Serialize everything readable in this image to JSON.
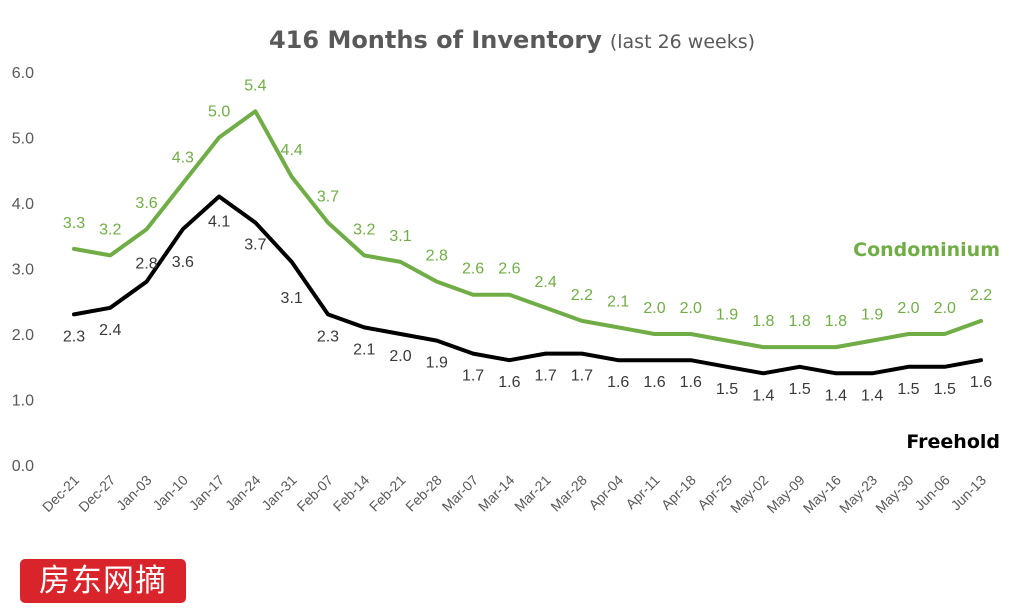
{
  "chart_data": {
    "type": "line",
    "title": "416 Months of Inventory",
    "subtitle": "(last 26 weeks)",
    "categories": [
      "Dec-21",
      "Dec-27",
      "Jan-03",
      "Jan-10",
      "Jan-17",
      "Jan-24",
      "Jan-31",
      "Feb-07",
      "Feb-14",
      "Feb-21",
      "Feb-28",
      "Mar-07",
      "Mar-14",
      "Mar-21",
      "Mar-28",
      "Apr-04",
      "Apr-11",
      "Apr-18",
      "Apr-25",
      "May-02",
      "May-09",
      "May-16",
      "May-23",
      "May-30",
      "Jun-06",
      "Jun-13"
    ],
    "yticks": [
      "0.0",
      "1.0",
      "2.0",
      "3.0",
      "4.0",
      "5.0",
      "6.0"
    ],
    "ylim": [
      0,
      6
    ],
    "grid": false,
    "series": [
      {
        "name": "Condominium",
        "color": "#70ad47",
        "values": [
          3.3,
          3.2,
          3.6,
          4.3,
          5.0,
          5.4,
          4.4,
          3.7,
          3.2,
          3.1,
          2.8,
          2.6,
          2.6,
          2.4,
          2.2,
          2.1,
          2.0,
          2.0,
          1.9,
          1.8,
          1.8,
          1.8,
          1.9,
          2.0,
          2.0,
          2.2
        ],
        "labels": [
          "3.3",
          "3.2",
          "3.6",
          "4.3",
          "5.0",
          "5.4",
          "4.4",
          "3.7",
          "3.2",
          "3.1",
          "2.8",
          "2.6",
          "2.6",
          "2.4",
          "2.2",
          "2.1",
          "2.0",
          "2.0",
          "1.9",
          "1.8",
          "1.8",
          "1.8",
          "1.9",
          "2.0",
          "2.0",
          "2.2"
        ]
      },
      {
        "name": "Freehold",
        "color": "#000000",
        "values": [
          2.3,
          2.4,
          2.8,
          3.6,
          4.1,
          3.7,
          3.1,
          2.3,
          2.1,
          2.0,
          1.9,
          1.7,
          1.6,
          1.7,
          1.7,
          1.6,
          1.6,
          1.6,
          1.5,
          1.4,
          1.5,
          1.4,
          1.4,
          1.5,
          1.5,
          1.6
        ],
        "labels": [
          "2.3",
          "2.4",
          "2.8",
          "3.6",
          "4.1",
          "3.7",
          "3.1",
          "2.3",
          "2.1",
          "2.0",
          "1.9",
          "1.7",
          "1.6",
          "1.7",
          "1.7",
          "1.6",
          "1.6",
          "1.6",
          "1.5",
          "1.4",
          "1.5",
          "1.4",
          "1.4",
          "1.5",
          "1.5",
          "1.6"
        ]
      }
    ]
  },
  "watermark": {
    "text": "房东网摘",
    "color": "#d8242a"
  }
}
